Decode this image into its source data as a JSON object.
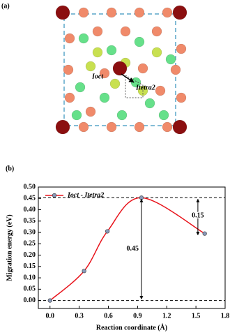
{
  "panel_a": {
    "label": "(a)",
    "annotations": [
      "Ioct",
      "Itetra2"
    ]
  },
  "chart_data": {
    "type": "line",
    "panel_label": "(b)",
    "x_label": "Reaction coordinate (Å)",
    "y_label": "Migration energy (eV)",
    "x": [
      0,
      0.35,
      0.59,
      0.94,
      1.59
    ],
    "series": [
      {
        "name": "Ioct - Itetra2",
        "color": "#e8141c",
        "values": [
          0,
          0.13,
          0.305,
          0.453,
          0.295
        ]
      }
    ],
    "annotations": [
      "0.45",
      "0.15"
    ],
    "xlim": [
      -0.12,
      1.8
    ],
    "xticks": [
      {
        "value": 0,
        "label": "0.0"
      },
      {
        "value": 0.3,
        "label": "0.3"
      },
      {
        "value": 0.6,
        "label": "0.6"
      },
      {
        "value": 0.9,
        "label": "0.9"
      },
      {
        "value": 1.2,
        "label": "1.2"
      },
      {
        "value": 1.5,
        "label": "1.5"
      },
      {
        "value": 1.8,
        "label": "1.8"
      }
    ],
    "ylim": [
      -0.035,
      0.5
    ],
    "yticks": [
      {
        "value": 0,
        "label": "0.00"
      },
      0.05,
      {
        "value": 0.1,
        "label": "0.10"
      },
      0.15,
      {
        "value": 0.2,
        "label": "0.20"
      },
      0.25,
      {
        "value": 0.3,
        "label": "0.30"
      },
      0.35,
      {
        "value": 0.4,
        "label": "0.40"
      },
      0.45,
      {
        "value": 0.5,
        "label": "0.50"
      }
    ],
    "legend": "upper left"
  }
}
